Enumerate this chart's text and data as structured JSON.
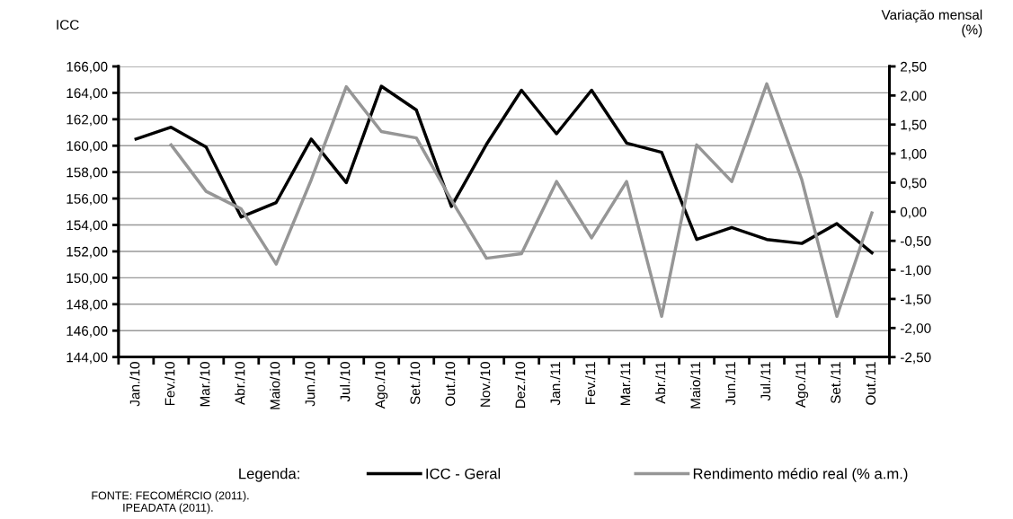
{
  "chart_data": {
    "type": "line",
    "ylabel": "ICC",
    "y2label": "Variação mensal\n(%)",
    "legend_title": "Legenda:",
    "categories": [
      "Jan./10",
      "Fev./10",
      "Mar./10",
      "Abr./10",
      "Maio/10",
      "Jun./10",
      "Jul./10",
      "Ago./10",
      "Set./10",
      "Out./10",
      "Nov./10",
      "Dez./10",
      "Jan./11",
      "Fev./11",
      "Mar./11",
      "Abr./11",
      "Maio/11",
      "Jun./11",
      "Jul./11",
      "Ago./11",
      "Set./11",
      "Out./11"
    ],
    "series": [
      {
        "name": "ICC - Geral",
        "color": "#000000",
        "values": [
          160.5,
          161.4,
          159.9,
          154.6,
          155.7,
          160.5,
          157.2,
          164.5,
          162.7,
          155.4,
          160.1,
          164.2,
          160.9,
          164.2,
          160.2,
          159.5,
          152.9,
          153.8,
          152.9,
          152.6,
          154.1,
          151.9
        ]
      },
      {
        "name": "Rendimento médio real (% a.m.)",
        "color": "#969696",
        "axis": "y2",
        "values": [
          null,
          1.15,
          0.35,
          0.05,
          -0.9,
          0.55,
          2.15,
          1.38,
          1.27,
          0.2,
          -0.8,
          -0.72,
          0.52,
          -0.45,
          0.52,
          -1.8,
          1.15,
          0.52,
          2.2,
          0.55,
          -1.8,
          -0.02
        ]
      }
    ],
    "ylim": [
      144,
      166
    ],
    "yticks": [
      {
        "value": 144,
        "label": "144,00"
      },
      {
        "value": 146,
        "label": "146,00"
      },
      {
        "value": 148,
        "label": "148,00"
      },
      {
        "value": 150,
        "label": "150,00"
      },
      {
        "value": 152,
        "label": "152,00"
      },
      {
        "value": 154,
        "label": "154,00"
      },
      {
        "value": 156,
        "label": "156,00"
      },
      {
        "value": 158,
        "label": "158,00"
      },
      {
        "value": 160,
        "label": "160,00"
      },
      {
        "value": 162,
        "label": "162,00"
      },
      {
        "value": 164,
        "label": "164,00"
      },
      {
        "value": 166,
        "label": "166,00"
      }
    ],
    "y2lim": [
      -2.5,
      2.5
    ],
    "y2ticks": [
      {
        "value": -2.5,
        "label": "-2,50"
      },
      {
        "value": -2,
        "label": "-2,00"
      },
      {
        "value": -1.5,
        "label": "-1,50"
      },
      {
        "value": -1,
        "label": "-1,00"
      },
      {
        "value": -0.5,
        "label": "-0,50"
      },
      {
        "value": 0,
        "label": "0,00"
      },
      {
        "value": 0.5,
        "label": "0,50"
      },
      {
        "value": 1,
        "label": "1,00"
      },
      {
        "value": 1.5,
        "label": "1,50"
      },
      {
        "value": 2,
        "label": "2,00"
      },
      {
        "value": 2.5,
        "label": "2,50"
      }
    ],
    "grid": "y",
    "legend": "bottom",
    "marker": "none",
    "line_style": "solid",
    "annotations": [
      "FONTE: FECOMÉRCIO (2011).\n          IPEADATA (2011)."
    ]
  }
}
